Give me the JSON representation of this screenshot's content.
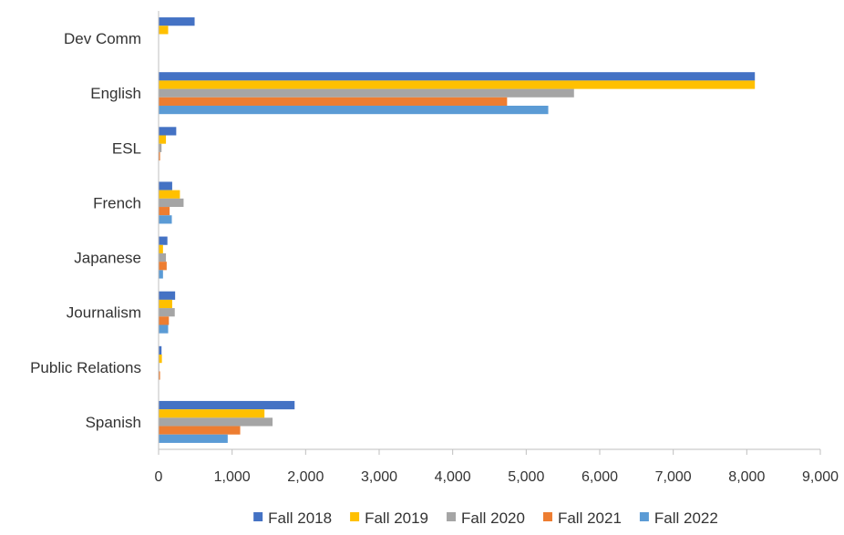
{
  "chart_data": {
    "type": "bar",
    "orientation": "horizontal",
    "title": "",
    "xlabel": "",
    "ylabel": "",
    "categories": [
      "Dev Comm",
      "English",
      "ESL",
      "French",
      "Japanese",
      "Journalism",
      "Public Relations",
      "Spanish"
    ],
    "series": [
      {
        "name": "Fall 2018",
        "color": "#4472C4",
        "values": [
          490,
          8110,
          240,
          185,
          120,
          225,
          40,
          1850
        ]
      },
      {
        "name": "Fall 2019",
        "color": "#FFC000",
        "values": [
          130,
          8110,
          100,
          290,
          60,
          185,
          45,
          1440
        ]
      },
      {
        "name": "Fall 2020",
        "color": "#A5A5A5",
        "values": [
          0,
          5650,
          40,
          340,
          100,
          220,
          10,
          1550
        ]
      },
      {
        "name": "Fall 2021",
        "color": "#ED7D31",
        "values": [
          0,
          4740,
          20,
          150,
          110,
          140,
          20,
          1110
        ]
      },
      {
        "name": "Fall 2022",
        "color": "#5B9BD5",
        "values": [
          0,
          5300,
          0,
          180,
          60,
          130,
          0,
          940
        ]
      }
    ],
    "xlim": [
      0,
      9000
    ],
    "xticks": [
      "0",
      "1,000",
      "2,000",
      "3,000",
      "4,000",
      "5,000",
      "6,000",
      "7,000",
      "8,000",
      "9,000"
    ],
    "grid": false,
    "legend_position": "bottom"
  }
}
